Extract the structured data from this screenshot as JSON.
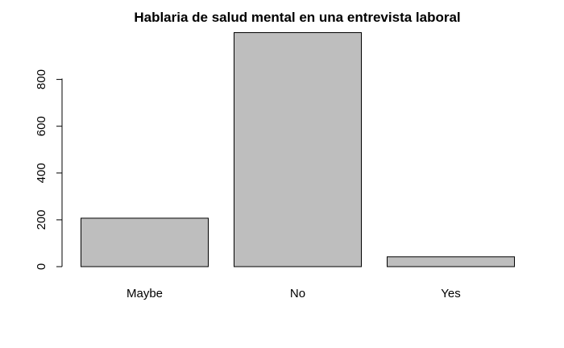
{
  "chart_data": {
    "type": "bar",
    "title": "Hablaria de salud mental en una entrevista laboral",
    "xlabel": "",
    "ylabel": "",
    "categories": [
      "Maybe",
      "No",
      "Yes"
    ],
    "values": [
      207,
      1000,
      42
    ],
    "ylim": [
      0,
      1000
    ],
    "yticks": [
      0,
      200,
      400,
      600,
      800
    ],
    "ytick_labels": [
      "0",
      "200",
      "400",
      "600",
      "800"
    ],
    "bar_color": "#bebebe",
    "bar_border_color": "#000000",
    "grid": false,
    "legend": "none"
  }
}
